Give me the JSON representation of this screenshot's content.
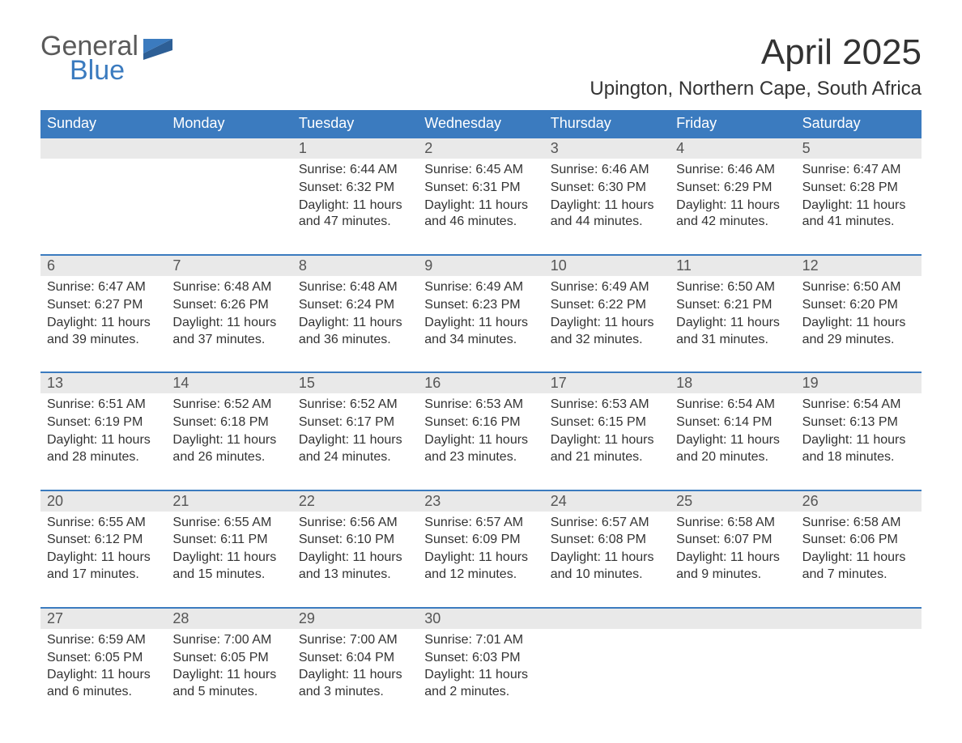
{
  "brand": {
    "part1": "General",
    "part2": "Blue",
    "color1": "#5a5a5a",
    "color2": "#3b7bbf"
  },
  "title": "April 2025",
  "location": "Upington, Northern Cape, South Africa",
  "colors": {
    "header_bg": "#3b7bbf",
    "header_text": "#ffffff",
    "daynum_bg": "#e9e9e9",
    "daynum_text": "#555555",
    "body_text": "#333333",
    "week_border": "#3b7bbf",
    "page_bg": "#ffffff"
  },
  "typography": {
    "title_fontsize": 44,
    "location_fontsize": 24,
    "header_fontsize": 18,
    "daynum_fontsize": 18,
    "cell_fontsize": 16
  },
  "columns": [
    "Sunday",
    "Monday",
    "Tuesday",
    "Wednesday",
    "Thursday",
    "Friday",
    "Saturday"
  ],
  "weeks": [
    {
      "days": [
        {
          "num": "",
          "lines": []
        },
        {
          "num": "",
          "lines": []
        },
        {
          "num": "1",
          "lines": [
            "Sunrise: 6:44 AM",
            "Sunset: 6:32 PM",
            "Daylight: 11 hours and 47 minutes."
          ]
        },
        {
          "num": "2",
          "lines": [
            "Sunrise: 6:45 AM",
            "Sunset: 6:31 PM",
            "Daylight: 11 hours and 46 minutes."
          ]
        },
        {
          "num": "3",
          "lines": [
            "Sunrise: 6:46 AM",
            "Sunset: 6:30 PM",
            "Daylight: 11 hours and 44 minutes."
          ]
        },
        {
          "num": "4",
          "lines": [
            "Sunrise: 6:46 AM",
            "Sunset: 6:29 PM",
            "Daylight: 11 hours and 42 minutes."
          ]
        },
        {
          "num": "5",
          "lines": [
            "Sunrise: 6:47 AM",
            "Sunset: 6:28 PM",
            "Daylight: 11 hours and 41 minutes."
          ]
        }
      ]
    },
    {
      "days": [
        {
          "num": "6",
          "lines": [
            "Sunrise: 6:47 AM",
            "Sunset: 6:27 PM",
            "Daylight: 11 hours and 39 minutes."
          ]
        },
        {
          "num": "7",
          "lines": [
            "Sunrise: 6:48 AM",
            "Sunset: 6:26 PM",
            "Daylight: 11 hours and 37 minutes."
          ]
        },
        {
          "num": "8",
          "lines": [
            "Sunrise: 6:48 AM",
            "Sunset: 6:24 PM",
            "Daylight: 11 hours and 36 minutes."
          ]
        },
        {
          "num": "9",
          "lines": [
            "Sunrise: 6:49 AM",
            "Sunset: 6:23 PM",
            "Daylight: 11 hours and 34 minutes."
          ]
        },
        {
          "num": "10",
          "lines": [
            "Sunrise: 6:49 AM",
            "Sunset: 6:22 PM",
            "Daylight: 11 hours and 32 minutes."
          ]
        },
        {
          "num": "11",
          "lines": [
            "Sunrise: 6:50 AM",
            "Sunset: 6:21 PM",
            "Daylight: 11 hours and 31 minutes."
          ]
        },
        {
          "num": "12",
          "lines": [
            "Sunrise: 6:50 AM",
            "Sunset: 6:20 PM",
            "Daylight: 11 hours and 29 minutes."
          ]
        }
      ]
    },
    {
      "days": [
        {
          "num": "13",
          "lines": [
            "Sunrise: 6:51 AM",
            "Sunset: 6:19 PM",
            "Daylight: 11 hours and 28 minutes."
          ]
        },
        {
          "num": "14",
          "lines": [
            "Sunrise: 6:52 AM",
            "Sunset: 6:18 PM",
            "Daylight: 11 hours and 26 minutes."
          ]
        },
        {
          "num": "15",
          "lines": [
            "Sunrise: 6:52 AM",
            "Sunset: 6:17 PM",
            "Daylight: 11 hours and 24 minutes."
          ]
        },
        {
          "num": "16",
          "lines": [
            "Sunrise: 6:53 AM",
            "Sunset: 6:16 PM",
            "Daylight: 11 hours and 23 minutes."
          ]
        },
        {
          "num": "17",
          "lines": [
            "Sunrise: 6:53 AM",
            "Sunset: 6:15 PM",
            "Daylight: 11 hours and 21 minutes."
          ]
        },
        {
          "num": "18",
          "lines": [
            "Sunrise: 6:54 AM",
            "Sunset: 6:14 PM",
            "Daylight: 11 hours and 20 minutes."
          ]
        },
        {
          "num": "19",
          "lines": [
            "Sunrise: 6:54 AM",
            "Sunset: 6:13 PM",
            "Daylight: 11 hours and 18 minutes."
          ]
        }
      ]
    },
    {
      "days": [
        {
          "num": "20",
          "lines": [
            "Sunrise: 6:55 AM",
            "Sunset: 6:12 PM",
            "Daylight: 11 hours and 17 minutes."
          ]
        },
        {
          "num": "21",
          "lines": [
            "Sunrise: 6:55 AM",
            "Sunset: 6:11 PM",
            "Daylight: 11 hours and 15 minutes."
          ]
        },
        {
          "num": "22",
          "lines": [
            "Sunrise: 6:56 AM",
            "Sunset: 6:10 PM",
            "Daylight: 11 hours and 13 minutes."
          ]
        },
        {
          "num": "23",
          "lines": [
            "Sunrise: 6:57 AM",
            "Sunset: 6:09 PM",
            "Daylight: 11 hours and 12 minutes."
          ]
        },
        {
          "num": "24",
          "lines": [
            "Sunrise: 6:57 AM",
            "Sunset: 6:08 PM",
            "Daylight: 11 hours and 10 minutes."
          ]
        },
        {
          "num": "25",
          "lines": [
            "Sunrise: 6:58 AM",
            "Sunset: 6:07 PM",
            "Daylight: 11 hours and 9 minutes."
          ]
        },
        {
          "num": "26",
          "lines": [
            "Sunrise: 6:58 AM",
            "Sunset: 6:06 PM",
            "Daylight: 11 hours and 7 minutes."
          ]
        }
      ]
    },
    {
      "days": [
        {
          "num": "27",
          "lines": [
            "Sunrise: 6:59 AM",
            "Sunset: 6:05 PM",
            "Daylight: 11 hours and 6 minutes."
          ]
        },
        {
          "num": "28",
          "lines": [
            "Sunrise: 7:00 AM",
            "Sunset: 6:05 PM",
            "Daylight: 11 hours and 5 minutes."
          ]
        },
        {
          "num": "29",
          "lines": [
            "Sunrise: 7:00 AM",
            "Sunset: 6:04 PM",
            "Daylight: 11 hours and 3 minutes."
          ]
        },
        {
          "num": "30",
          "lines": [
            "Sunrise: 7:01 AM",
            "Sunset: 6:03 PM",
            "Daylight: 11 hours and 2 minutes."
          ]
        },
        {
          "num": "",
          "lines": []
        },
        {
          "num": "",
          "lines": []
        },
        {
          "num": "",
          "lines": []
        }
      ]
    }
  ]
}
